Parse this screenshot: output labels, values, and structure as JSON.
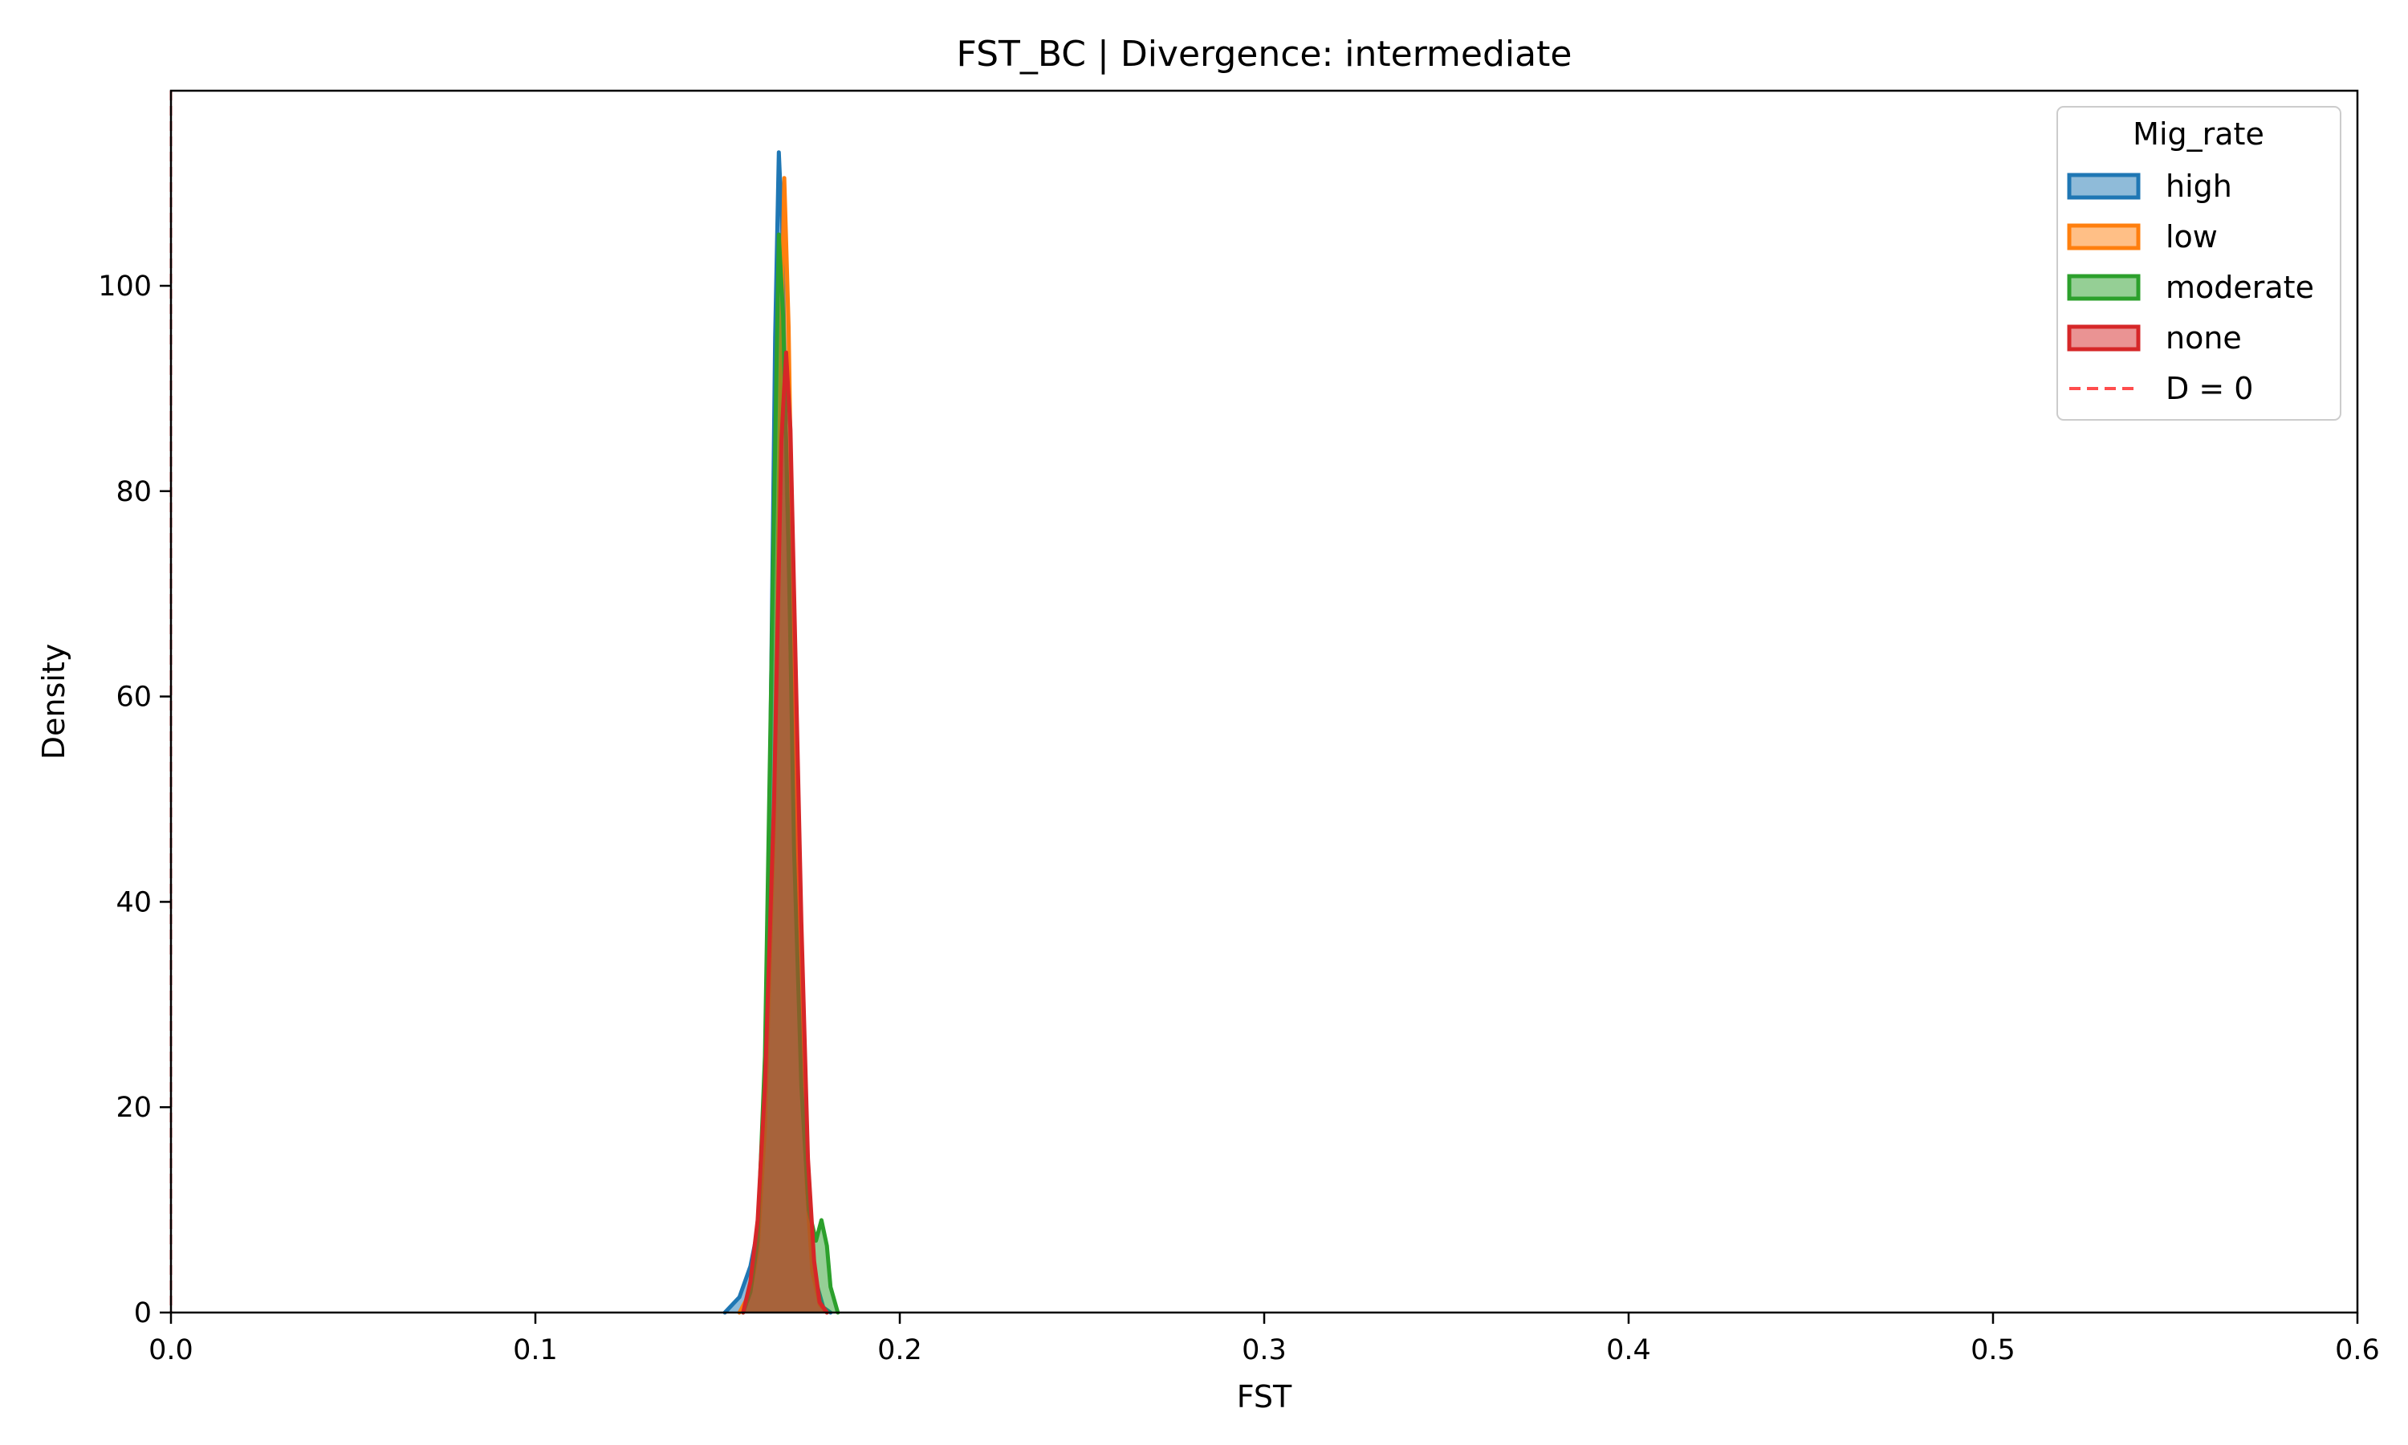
{
  "chart_data": {
    "type": "area",
    "title": "FST_BC | Divergence: intermediate",
    "xlabel": "FST",
    "ylabel": "Density",
    "xlim": [
      0.0,
      0.6
    ],
    "ylim": [
      0,
      119
    ],
    "xticks": [
      0.0,
      0.1,
      0.2,
      0.3,
      0.4,
      0.5,
      0.6
    ],
    "xtick_labels": [
      "0.0",
      "0.1",
      "0.2",
      "0.3",
      "0.4",
      "0.5",
      "0.6"
    ],
    "yticks": [
      0,
      20,
      40,
      60,
      80,
      100
    ],
    "ytick_labels": [
      "0",
      "20",
      "40",
      "60",
      "80",
      "100"
    ],
    "grid": false,
    "legend": {
      "title": "Mig_rate",
      "placement": "top-right",
      "entries": [
        {
          "label": "high",
          "color": "#1f77b4",
          "kind": "patch"
        },
        {
          "label": "low",
          "color": "#ff7f0e",
          "kind": "patch"
        },
        {
          "label": "moderate",
          "color": "#2ca02c",
          "kind": "patch"
        },
        {
          "label": "none",
          "color": "#d62728",
          "kind": "patch"
        },
        {
          "label": "D = 0",
          "color": "#ff4d4d",
          "kind": "dashed-line"
        }
      ]
    },
    "series": [
      {
        "name": "high",
        "color": "#1f77b4",
        "points": [
          [
            0.152,
            0
          ],
          [
            0.156,
            1.5
          ],
          [
            0.159,
            4.5
          ],
          [
            0.161,
            8
          ],
          [
            0.163,
            22
          ],
          [
            0.1645,
            55
          ],
          [
            0.1658,
            95
          ],
          [
            0.1668,
            113
          ],
          [
            0.1678,
            105
          ],
          [
            0.169,
            80
          ],
          [
            0.171,
            50
          ],
          [
            0.173,
            25
          ],
          [
            0.175,
            10
          ],
          [
            0.177,
            3
          ],
          [
            0.179,
            0.5
          ],
          [
            0.181,
            0
          ]
        ]
      },
      {
        "name": "low",
        "color": "#ff7f0e",
        "points": [
          [
            0.156,
            0
          ],
          [
            0.159,
            2
          ],
          [
            0.161,
            6
          ],
          [
            0.163,
            18
          ],
          [
            0.1655,
            48
          ],
          [
            0.1672,
            90
          ],
          [
            0.1683,
            110.5
          ],
          [
            0.1695,
            96
          ],
          [
            0.171,
            62
          ],
          [
            0.1725,
            32
          ],
          [
            0.1745,
            12
          ],
          [
            0.176,
            4
          ],
          [
            0.178,
            0.8
          ],
          [
            0.18,
            0
          ]
        ]
      },
      {
        "name": "moderate",
        "color": "#2ca02c",
        "points": [
          [
            0.157,
            0
          ],
          [
            0.159,
            2
          ],
          [
            0.161,
            7
          ],
          [
            0.163,
            25
          ],
          [
            0.1652,
            72
          ],
          [
            0.1668,
            105
          ],
          [
            0.168,
            97
          ],
          [
            0.1695,
            75
          ],
          [
            0.171,
            45
          ],
          [
            0.173,
            22
          ],
          [
            0.175,
            10
          ],
          [
            0.177,
            7
          ],
          [
            0.1785,
            9
          ],
          [
            0.18,
            6.5
          ],
          [
            0.181,
            2.5
          ],
          [
            0.183,
            0
          ]
        ]
      },
      {
        "name": "none",
        "color": "#d62728",
        "points": [
          [
            0.157,
            0
          ],
          [
            0.159,
            3
          ],
          [
            0.161,
            9
          ],
          [
            0.163,
            22
          ],
          [
            0.1655,
            50
          ],
          [
            0.1675,
            85
          ],
          [
            0.1688,
            93.5
          ],
          [
            0.17,
            86
          ],
          [
            0.1715,
            62
          ],
          [
            0.173,
            38
          ],
          [
            0.1748,
            15
          ],
          [
            0.1765,
            5
          ],
          [
            0.178,
            1
          ],
          [
            0.18,
            0
          ]
        ]
      }
    ],
    "reference_lines": [
      {
        "label": "D = 0",
        "x": 0.0,
        "color": "#ff4d4d",
        "style": "dashed"
      }
    ]
  }
}
